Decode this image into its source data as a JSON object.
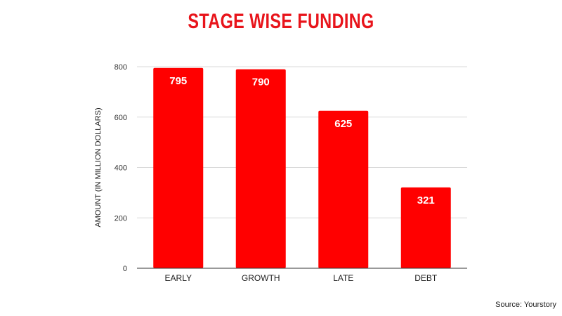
{
  "colors": {
    "bar": "#ff0000",
    "title": "#e8141b",
    "grid": "#d9d9d9",
    "baseline": "#333333"
  },
  "chart_data": {
    "type": "bar",
    "title": "STAGE WISE FUNDING",
    "xlabel": "",
    "ylabel": "AMOUNT (IN MILLION DOLLARS)",
    "categories": [
      "EARLY",
      "GROWTH",
      "LATE",
      "DEBT"
    ],
    "values": [
      795,
      790,
      625,
      321
    ],
    "data_labels": [
      "795",
      "790",
      "625",
      "321"
    ],
    "ylim": [
      0,
      800
    ],
    "yticks": [
      0,
      200,
      400,
      600,
      800
    ],
    "ytick_labels": [
      "0",
      "200",
      "400",
      "600",
      "800"
    ],
    "grid": true,
    "legend": "none"
  },
  "source": "Source: Yourstory"
}
